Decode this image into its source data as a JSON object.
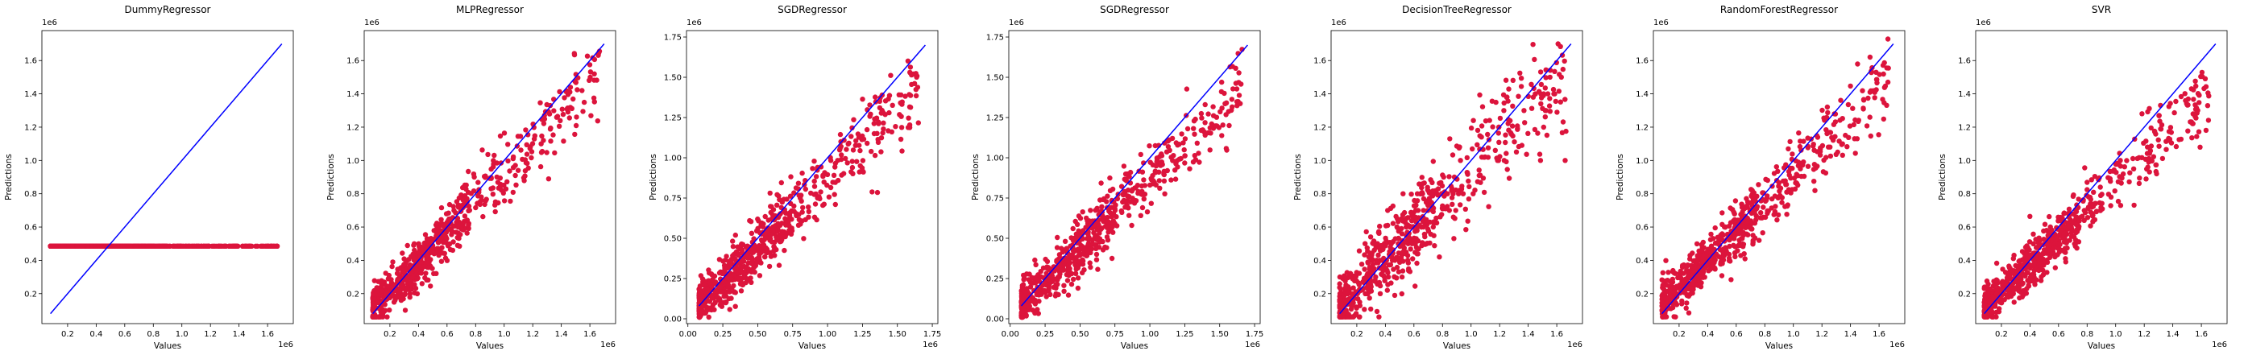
{
  "figure": {
    "marker_color": "#dc143c",
    "line_color": "#0000ff"
  },
  "chart_data": [
    {
      "type": "scatter",
      "title": "DummyRegressor",
      "xlabel": "Values",
      "ylabel": "Predictions",
      "x_ticks": [
        "0.2",
        "0.4",
        "0.6",
        "0.8",
        "1.0",
        "1.2",
        "1.4",
        "1.6"
      ],
      "y_ticks": [
        "0.2",
        "0.4",
        "0.6",
        "0.8",
        "1.0",
        "1.2",
        "1.4",
        "1.6"
      ],
      "x_offset_label": "1e6",
      "y_offset_label": "1e6",
      "xlim": [
        0.02,
        1.78
      ],
      "ylim": [
        0.02,
        1.78
      ],
      "reference_line": [
        [
          0.08,
          0.08
        ],
        [
          1.7,
          1.7
        ]
      ],
      "series": [
        {
          "pattern": "constant",
          "y_constant": 0.485,
          "x_min": 0.08,
          "x_max": 1.7
        }
      ]
    },
    {
      "type": "scatter",
      "title": "MLPRegressor",
      "xlabel": "Values",
      "ylabel": "Predictions",
      "x_ticks": [
        "0.2",
        "0.4",
        "0.6",
        "0.8",
        "1.0",
        "1.2",
        "1.4",
        "1.6"
      ],
      "y_ticks": [
        "0.2",
        "0.4",
        "0.6",
        "0.8",
        "1.0",
        "1.2",
        "1.4",
        "1.6"
      ],
      "x_offset_label": "1e6",
      "y_offset_label": "1e6",
      "xlim": [
        0.02,
        1.78
      ],
      "ylim": [
        0.02,
        1.78
      ],
      "reference_line": [
        [
          0.08,
          0.08
        ],
        [
          1.7,
          1.7
        ]
      ],
      "series": [
        {
          "pattern": "linear",
          "slope": 0.9,
          "intercept": 0.03,
          "noise": 0.085,
          "x_min": 0.08,
          "x_max": 1.7
        }
      ]
    },
    {
      "type": "scatter",
      "title": "SGDRegressor",
      "xlabel": "Values",
      "ylabel": "Predictions",
      "x_ticks": [
        "0.00",
        "0.25",
        "0.50",
        "0.75",
        "1.00",
        "1.25",
        "1.50",
        "1.75"
      ],
      "y_ticks": [
        "0.00",
        "0.25",
        "0.50",
        "0.75",
        "1.00",
        "1.25",
        "1.50",
        "1.75"
      ],
      "x_offset_label": "1e6",
      "y_offset_label": "1e6",
      "xlim": [
        -0.01,
        1.79
      ],
      "ylim": [
        -0.03,
        1.79
      ],
      "reference_line": [
        [
          0.08,
          0.08
        ],
        [
          1.7,
          1.7
        ]
      ],
      "series": [
        {
          "pattern": "linear",
          "slope": 0.85,
          "intercept": 0.02,
          "noise": 0.09,
          "x_min": 0.08,
          "x_max": 1.7
        }
      ]
    },
    {
      "type": "scatter",
      "title": "SGDRegressor",
      "xlabel": "Values",
      "ylabel": "Predictions",
      "x_ticks": [
        "0.00",
        "0.25",
        "0.50",
        "0.75",
        "1.00",
        "1.25",
        "1.50",
        "1.75"
      ],
      "y_ticks": [
        "0.00",
        "0.25",
        "0.50",
        "0.75",
        "1.00",
        "1.25",
        "1.50",
        "1.75"
      ],
      "x_offset_label": "1e6",
      "y_offset_label": "1e6",
      "xlim": [
        -0.01,
        1.79
      ],
      "ylim": [
        -0.03,
        1.79
      ],
      "reference_line": [
        [
          0.08,
          0.08
        ],
        [
          1.7,
          1.7
        ]
      ],
      "series": [
        {
          "pattern": "linear",
          "slope": 0.86,
          "intercept": 0.02,
          "noise": 0.09,
          "x_min": 0.08,
          "x_max": 1.7
        }
      ]
    },
    {
      "type": "scatter",
      "title": "DecisionTreeRegressor",
      "xlabel": "Values",
      "ylabel": "Predictions",
      "x_ticks": [
        "0.2",
        "0.4",
        "0.6",
        "0.8",
        "1.0",
        "1.2",
        "1.4",
        "1.6"
      ],
      "y_ticks": [
        "0.2",
        "0.4",
        "0.6",
        "0.8",
        "1.0",
        "1.2",
        "1.4",
        "1.6"
      ],
      "x_offset_label": "1e6",
      "y_offset_label": "1e6",
      "xlim": [
        0.02,
        1.78
      ],
      "ylim": [
        0.02,
        1.78
      ],
      "reference_line": [
        [
          0.08,
          0.08
        ],
        [
          1.7,
          1.7
        ]
      ],
      "series": [
        {
          "pattern": "stepped",
          "slope": 0.88,
          "intercept": 0.05,
          "noise": 0.13,
          "x_min": 0.08,
          "x_max": 1.7
        }
      ]
    },
    {
      "type": "scatter",
      "title": "RandomForestRegressor",
      "xlabel": "Values",
      "ylabel": "Predictions",
      "x_ticks": [
        "0.2",
        "0.4",
        "0.6",
        "0.8",
        "1.0",
        "1.2",
        "1.4",
        "1.6"
      ],
      "y_ticks": [
        "0.2",
        "0.4",
        "0.6",
        "0.8",
        "1.0",
        "1.2",
        "1.4",
        "1.6"
      ],
      "x_offset_label": "1e6",
      "y_offset_label": "1e6",
      "xlim": [
        0.02,
        1.78
      ],
      "ylim": [
        0.02,
        1.78
      ],
      "reference_line": [
        [
          0.08,
          0.08
        ],
        [
          1.7,
          1.7
        ]
      ],
      "series": [
        {
          "pattern": "linear",
          "slope": 0.85,
          "intercept": 0.06,
          "noise": 0.085,
          "x_min": 0.08,
          "x_max": 1.7
        }
      ]
    },
    {
      "type": "scatter",
      "title": "SVR",
      "xlabel": "Values",
      "ylabel": "Predictions",
      "x_ticks": [
        "0.2",
        "0.4",
        "0.6",
        "0.8",
        "1.0",
        "1.2",
        "1.4",
        "1.6"
      ],
      "y_ticks": [
        "0.2",
        "0.4",
        "0.6",
        "0.8",
        "1.0",
        "1.2",
        "1.4",
        "1.6"
      ],
      "x_offset_label": "1e6",
      "y_offset_label": "1e6",
      "xlim": [
        0.02,
        1.78
      ],
      "ylim": [
        0.02,
        1.78
      ],
      "reference_line": [
        [
          0.08,
          0.08
        ],
        [
          1.7,
          1.7
        ]
      ],
      "series": [
        {
          "pattern": "linear",
          "slope": 0.82,
          "intercept": 0.05,
          "noise": 0.08,
          "x_min": 0.08,
          "x_max": 1.7
        }
      ]
    }
  ]
}
